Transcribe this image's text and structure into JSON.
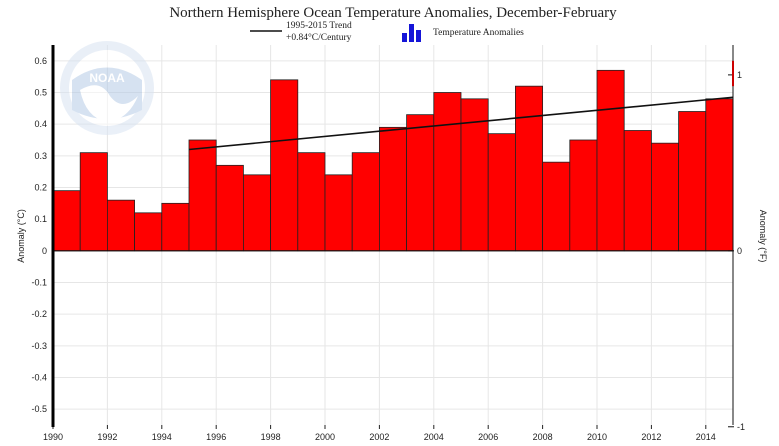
{
  "chart_data": {
    "type": "bar",
    "title": "Northern Hemisphere Ocean Temperature Anomalies, December-February",
    "ylabel": "Anomaly (°C)",
    "y2label": "Anomaly (°F)",
    "ylim": [
      -0.55,
      0.65
    ],
    "y_ticks": [
      "0.6",
      "0.5",
      "0.4",
      "0.3",
      "0.2",
      "0.1",
      "0",
      "-0.1",
      "-0.2",
      "-0.3",
      "-0.4",
      "-0.5"
    ],
    "y_tick_values": [
      0.6,
      0.5,
      0.4,
      0.3,
      0.2,
      0.1,
      0,
      -0.1,
      -0.2,
      -0.3,
      -0.4,
      -0.5
    ],
    "y2_ticks": [
      "1",
      "0",
      "-1"
    ],
    "y2_tick_values_c": [
      0.5556,
      0,
      -0.5556
    ],
    "x_ticks": [
      "1990",
      "1992",
      "1994",
      "1996",
      "1998",
      "2000",
      "2002",
      "2004",
      "2006",
      "2008",
      "2010",
      "2012",
      "2014"
    ],
    "x_tick_values": [
      1990,
      1992,
      1994,
      1996,
      1998,
      2000,
      2002,
      2004,
      2006,
      2008,
      2010,
      2012,
      2014
    ],
    "xlim": [
      1990,
      2015
    ],
    "categories": [
      1990,
      1991,
      1992,
      1993,
      1994,
      1995,
      1996,
      1997,
      1998,
      1999,
      2000,
      2001,
      2002,
      2003,
      2004,
      2005,
      2006,
      2007,
      2008,
      2009,
      2010,
      2011,
      2012,
      2013,
      2014
    ],
    "values": [
      0.19,
      0.31,
      0.16,
      0.12,
      0.15,
      0.35,
      0.27,
      0.24,
      0.54,
      0.31,
      0.24,
      0.31,
      0.39,
      0.43,
      0.5,
      0.48,
      0.37,
      0.52,
      0.28,
      0.35,
      0.57,
      0.38,
      0.34,
      0.44,
      0.48
    ],
    "trend": {
      "x": [
        1995,
        2015
      ],
      "y": [
        0.32,
        0.485
      ]
    },
    "legend": {
      "trend_label_line1": "1995-2015 Trend",
      "trend_label_line2": "+0.84°C/Century",
      "bars_label": "Temperature Anomalies",
      "position": "top-center"
    },
    "watermark": "NOAA",
    "colors": {
      "bar": "#ff0000",
      "legend_bars": "#1515d8",
      "trend": "#111111"
    }
  }
}
